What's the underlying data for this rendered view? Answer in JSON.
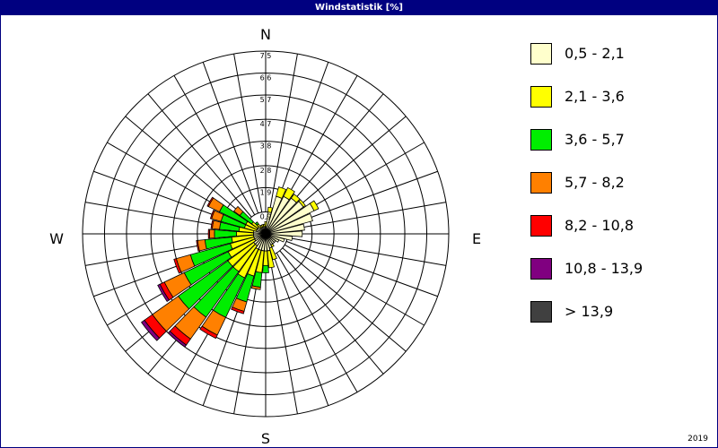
{
  "window": {
    "title": "Windstatistik [%]"
  },
  "footer": {
    "year": "2019"
  },
  "chart_data": {
    "type": "wind-rose",
    "title": "Windstatistik [%]",
    "compass": {
      "north": "N",
      "east": "E",
      "south": "S",
      "west": "W"
    },
    "ring_labels": [
      "0,9",
      "1,9",
      "2,8",
      "3,8",
      "4,7",
      "5,7",
      "6,6",
      "7,5"
    ],
    "grid": true,
    "directions_deg": [
      0,
      10,
      20,
      30,
      40,
      50,
      60,
      70,
      80,
      90,
      100,
      110,
      120,
      130,
      140,
      150,
      160,
      170,
      180,
      190,
      200,
      210,
      220,
      230,
      240,
      250,
      260,
      270,
      280,
      290,
      300,
      310,
      320,
      330,
      340,
      350
    ],
    "legend_position": "right",
    "series": [
      {
        "name": "0,5 - 2,1",
        "color": "#ffffcc",
        "values": [
          0.3,
          0.9,
          1.6,
          1.7,
          1.8,
          1.9,
          2.2,
          2.0,
          1.6,
          1.5,
          1.1,
          0.8,
          0.6,
          0.5,
          0.5,
          0.5,
          0.6,
          0.7,
          0.7,
          0.7,
          0.7,
          0.7,
          0.6,
          0.6,
          0.5,
          0.5,
          0.5,
          0.5,
          0.5,
          0.4,
          0.4,
          0.4,
          0.3,
          0.3,
          0.3,
          0.3
        ]
      },
      {
        "name": "2,1 - 3,6",
        "color": "#ffff00",
        "values": [
          0.2,
          0.2,
          0.4,
          0.4,
          0.2,
          0.1,
          0.2,
          0.0,
          0.0,
          0.0,
          0.0,
          0.0,
          0.0,
          0.0,
          0.0,
          0.1,
          0.5,
          0.7,
          0.6,
          0.9,
          1.1,
          1.3,
          1.3,
          1.3,
          1.2,
          1.0,
          0.9,
          0.7,
          0.6,
          0.5,
          0.5,
          0.3,
          0.2,
          0.1,
          0.1,
          0.1
        ]
      },
      {
        "name": "3,6 - 5,7",
        "color": "#00ee00",
        "values": [
          0.0,
          0.0,
          0.0,
          0.0,
          0.0,
          0.0,
          0.0,
          0.0,
          0.0,
          0.0,
          0.0,
          0.0,
          0.0,
          0.0,
          0.0,
          0.0,
          0.0,
          0.0,
          0.3,
          0.6,
          1.1,
          1.8,
          2.3,
          2.5,
          2.0,
          1.7,
          1.1,
          0.9,
          0.8,
          1.0,
          1.2,
          0.6,
          0.1,
          0.0,
          0.0,
          0.0
        ]
      },
      {
        "name": "5,7 - 8,2",
        "color": "#ff8000",
        "values": [
          0.0,
          0.0,
          0.0,
          0.0,
          0.0,
          0.0,
          0.0,
          0.0,
          0.0,
          0.0,
          0.0,
          0.0,
          0.0,
          0.0,
          0.0,
          0.0,
          0.0,
          0.0,
          0.0,
          0.1,
          0.4,
          0.8,
          1.1,
          1.3,
          0.9,
          0.6,
          0.3,
          0.2,
          0.3,
          0.4,
          0.5,
          0.3,
          0.0,
          0.0,
          0.0,
          0.0
        ]
      },
      {
        "name": "8,2 - 10,8",
        "color": "#ff0000",
        "values": [
          0.0,
          0.0,
          0.0,
          0.0,
          0.0,
          0.0,
          0.0,
          0.0,
          0.0,
          0.0,
          0.0,
          0.0,
          0.0,
          0.0,
          0.0,
          0.0,
          0.0,
          0.0,
          0.0,
          0.0,
          0.1,
          0.15,
          0.3,
          0.4,
          0.2,
          0.1,
          0.05,
          0.05,
          0.05,
          0.05,
          0.05,
          0.0,
          0.0,
          0.0,
          0.0,
          0.0
        ]
      },
      {
        "name": "10,8 - 13,9",
        "color": "#800080",
        "values": [
          0.0,
          0.0,
          0.0,
          0.0,
          0.0,
          0.0,
          0.0,
          0.0,
          0.0,
          0.0,
          0.0,
          0.0,
          0.0,
          0.0,
          0.0,
          0.0,
          0.0,
          0.0,
          0.0,
          0.0,
          0.0,
          0.0,
          0.1,
          0.15,
          0.1,
          0.0,
          0.0,
          0.0,
          0.0,
          0.0,
          0.0,
          0.0,
          0.0,
          0.0,
          0.0,
          0.0
        ]
      },
      {
        "name": " > 13,9",
        "color": "#404040",
        "values": [
          0.0,
          0.0,
          0.0,
          0.0,
          0.0,
          0.0,
          0.0,
          0.0,
          0.0,
          0.0,
          0.0,
          0.0,
          0.0,
          0.0,
          0.0,
          0.0,
          0.0,
          0.0,
          0.0,
          0.0,
          0.0,
          0.0,
          0.0,
          0.0,
          0.0,
          0.0,
          0.0,
          0.0,
          0.0,
          0.0,
          0.0,
          0.0,
          0.0,
          0.0,
          0.0,
          0.0
        ]
      }
    ]
  }
}
